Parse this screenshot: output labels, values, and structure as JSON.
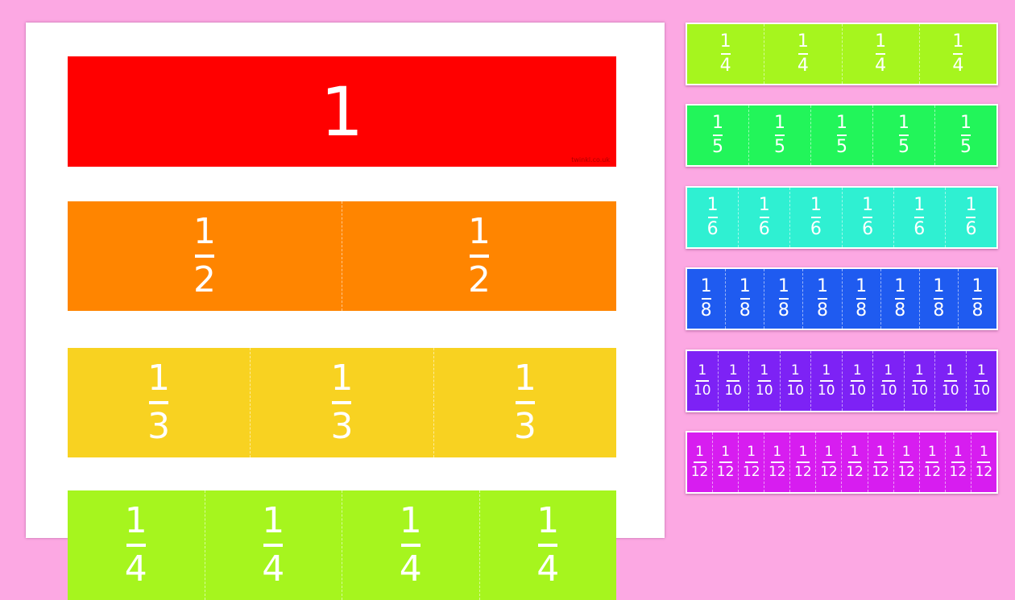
{
  "sheet": {
    "whole": {
      "label": "1",
      "color": "#ff0000",
      "watermark": "twinkl.co.uk"
    },
    "rows": [
      {
        "numerator": "1",
        "denominator": "2",
        "count": 2,
        "color": "#ff8500"
      },
      {
        "numerator": "1",
        "denominator": "3",
        "count": 3,
        "color": "#f8d221"
      },
      {
        "numerator": "1",
        "denominator": "4",
        "count": 4,
        "color": "#a6f51e"
      }
    ]
  },
  "strips": [
    {
      "numerator": "1",
      "denominator": "4",
      "count": 4,
      "color": "#a6f51e"
    },
    {
      "numerator": "1",
      "denominator": "5",
      "count": 5,
      "color": "#22f55a"
    },
    {
      "numerator": "1",
      "denominator": "6",
      "count": 6,
      "color": "#2ff0d2"
    },
    {
      "numerator": "1",
      "denominator": "8",
      "count": 8,
      "color": "#1f5bf0"
    },
    {
      "numerator": "1",
      "denominator": "10",
      "count": 10,
      "color": "#7d22f5"
    },
    {
      "numerator": "1",
      "denominator": "12",
      "count": 12,
      "color": "#d71df0"
    }
  ]
}
